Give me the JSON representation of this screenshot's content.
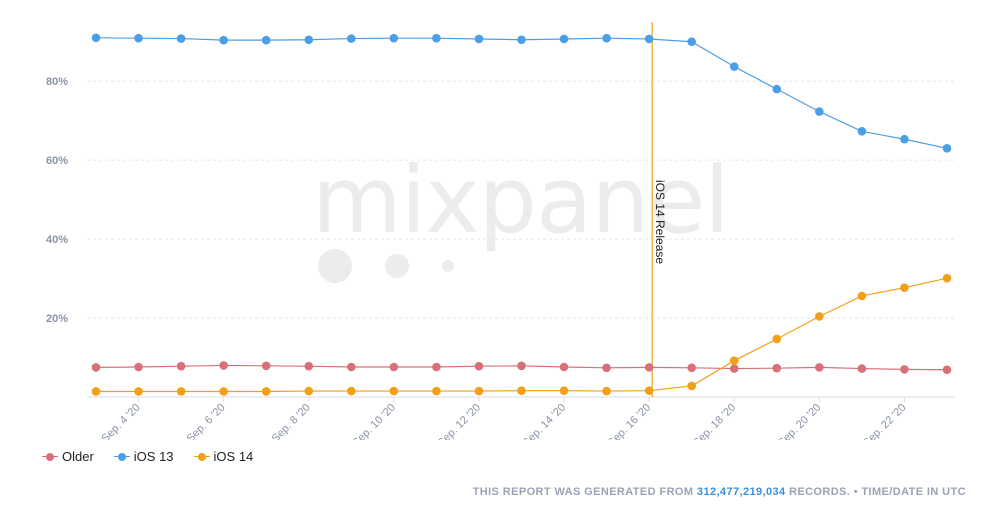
{
  "chart_data": {
    "type": "line",
    "title": "",
    "xlabel": "",
    "ylabel": "",
    "ylim": [
      0,
      95
    ],
    "y_ticks": [
      20,
      40,
      60,
      80
    ],
    "y_tick_labels": [
      "20%",
      "40%",
      "60%",
      "80%"
    ],
    "grid": true,
    "legend_position": "bottom-left",
    "x": [
      "Sep. 3 '20",
      "Sep. 4 '20",
      "Sep. 5 '20",
      "Sep. 6 '20",
      "Sep. 7 '20",
      "Sep. 8 '20",
      "Sep. 9 '20",
      "Sep. 10 '20",
      "Sep. 11 '20",
      "Sep. 12 '20",
      "Sep. 13 '20",
      "Sep. 14 '20",
      "Sep. 15 '20",
      "Sep. 16 '20",
      "Sep. 17 '20",
      "Sep. 18 '20",
      "Sep. 19 '20",
      "Sep. 20 '20",
      "Sep. 21 '20",
      "Sep. 22 '20",
      "Sep. 23 '20"
    ],
    "x_tick_labels": [
      "Sep. 4 '20",
      "Sep. 6 '20",
      "Sep. 8 '20",
      "Sep. 10 '20",
      "Sep. 12 '20",
      "Sep. 14 '20",
      "Sep. 16 '20",
      "Sep. 18 '20",
      "Sep. 20 '20",
      "Sep. 22 '20"
    ],
    "series": [
      {
        "name": "Older",
        "color": "#d8707a",
        "values": [
          7.5,
          7.6,
          7.8,
          8.0,
          7.9,
          7.8,
          7.6,
          7.6,
          7.6,
          7.8,
          7.9,
          7.6,
          7.4,
          7.5,
          7.4,
          7.2,
          7.3,
          7.5,
          7.2,
          7.0,
          6.9
        ]
      },
      {
        "name": "iOS 13",
        "color": "#4a9fe6",
        "values": [
          91.0,
          90.9,
          90.8,
          90.4,
          90.4,
          90.5,
          90.8,
          90.9,
          90.9,
          90.7,
          90.5,
          90.7,
          90.9,
          90.7,
          90.0,
          83.7,
          78.0,
          72.3,
          67.3,
          65.3,
          63.0
        ]
      },
      {
        "name": "iOS 14",
        "color": "#f2a018",
        "values": [
          1.4,
          1.4,
          1.4,
          1.4,
          1.4,
          1.5,
          1.5,
          1.5,
          1.5,
          1.5,
          1.6,
          1.6,
          1.5,
          1.6,
          2.8,
          9.2,
          14.7,
          20.4,
          25.6,
          27.7,
          30.1
        ]
      }
    ],
    "annotations": [
      {
        "label": "iOS 14 Release",
        "x": "Sep. 16 '20",
        "color": "#f2a018"
      }
    ]
  },
  "watermark": "mixpanel",
  "legend": [
    {
      "name": "Older",
      "color": "#d8707a"
    },
    {
      "name": "iOS 13",
      "color": "#4a9fe6"
    },
    {
      "name": "iOS 14",
      "color": "#f2a018"
    }
  ],
  "footer": {
    "prefix": "THIS REPORT WAS GENERATED FROM",
    "records": "312,477,219,034",
    "suffix": "RECORDS. • TIME/DATE IN UTC"
  }
}
